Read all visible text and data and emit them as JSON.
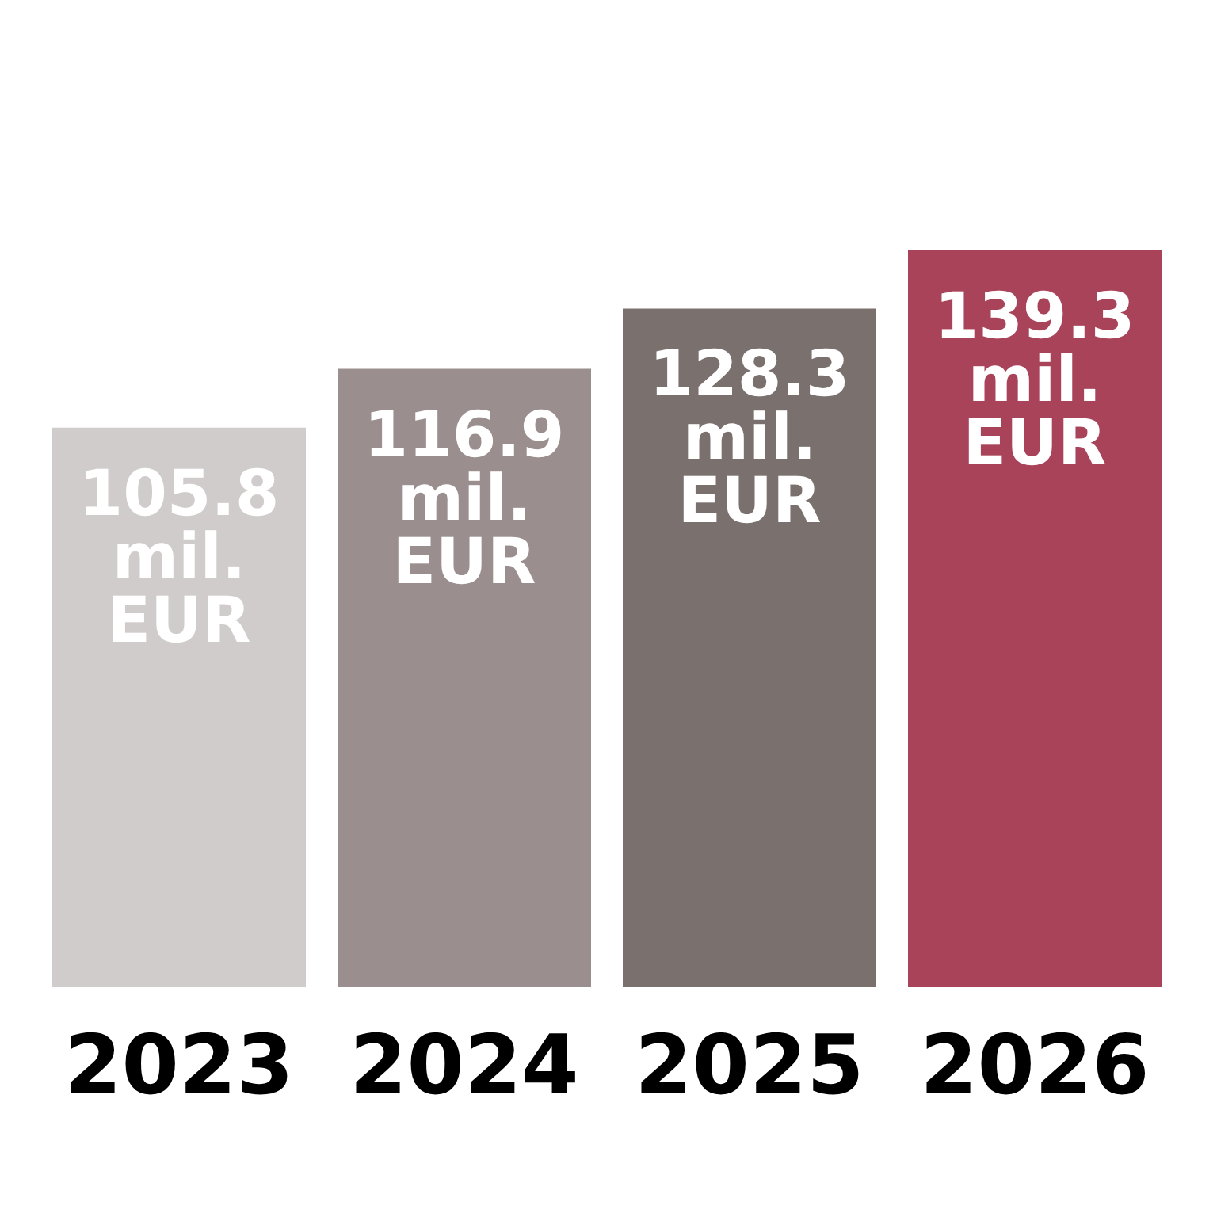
{
  "chart_data": {
    "type": "bar",
    "categories": [
      "2023",
      "2024",
      "2025",
      "2026"
    ],
    "values": [
      105.8,
      116.9,
      128.3,
      139.3
    ],
    "colors": [
      "#d0cccb",
      "#9a8f8e",
      "#7a706e",
      "#a8435a"
    ],
    "value_labels": [
      "105.8 mil. EUR",
      "116.9 mil. EUR",
      "128.3 mil. EUR",
      "139.3 mil. EUR"
    ],
    "tick_labels": "x"
  }
}
